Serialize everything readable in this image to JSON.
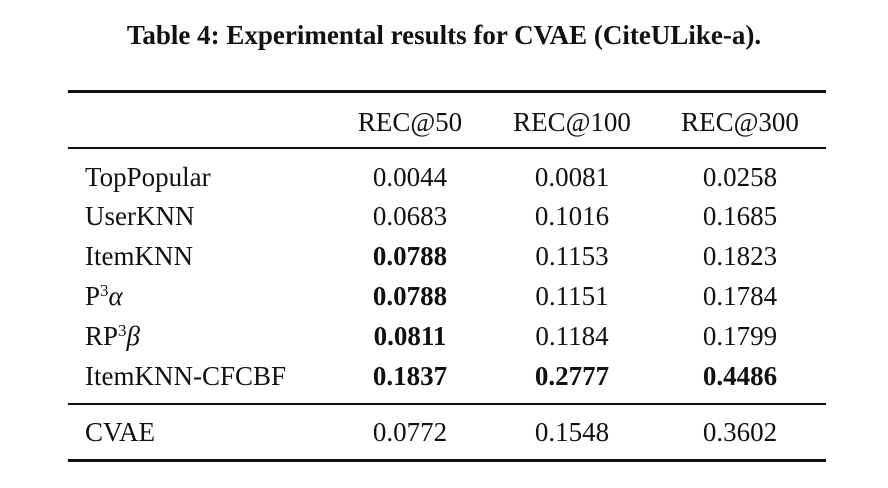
{
  "title": "Table 4: Experimental results for CVAE (CiteULike-a).",
  "table": {
    "header": [
      "REC@50",
      "REC@100",
      "REC@300"
    ],
    "groups": [
      [
        {
          "method": "TopPopular",
          "values": [
            "0.0044",
            "0.0081",
            "0.0258"
          ],
          "bold": [
            false,
            false,
            false
          ]
        },
        {
          "method": "UserKNN",
          "values": [
            "0.0683",
            "0.1016",
            "0.1685"
          ],
          "bold": [
            false,
            false,
            false
          ]
        },
        {
          "method": "ItemKNN",
          "values": [
            "0.0788",
            "0.1153",
            "0.1823"
          ],
          "bold": [
            true,
            false,
            false
          ]
        },
        {
          "method": {
            "base": "P",
            "sup": "3",
            "tail": "α"
          },
          "values": [
            "0.0788",
            "0.1151",
            "0.1784"
          ],
          "bold": [
            true,
            false,
            false
          ]
        },
        {
          "method": {
            "base": "RP",
            "sup": "3",
            "tail": "β"
          },
          "values": [
            "0.0811",
            "0.1184",
            "0.1799"
          ],
          "bold": [
            true,
            false,
            false
          ]
        },
        {
          "method": "ItemKNN-CFCBF",
          "values": [
            "0.1837",
            "0.2777",
            "0.4486"
          ],
          "bold": [
            true,
            true,
            true
          ]
        }
      ],
      [
        {
          "method": "CVAE",
          "values": [
            "0.0772",
            "0.1548",
            "0.3602"
          ],
          "bold": [
            false,
            false,
            false
          ]
        }
      ]
    ]
  }
}
